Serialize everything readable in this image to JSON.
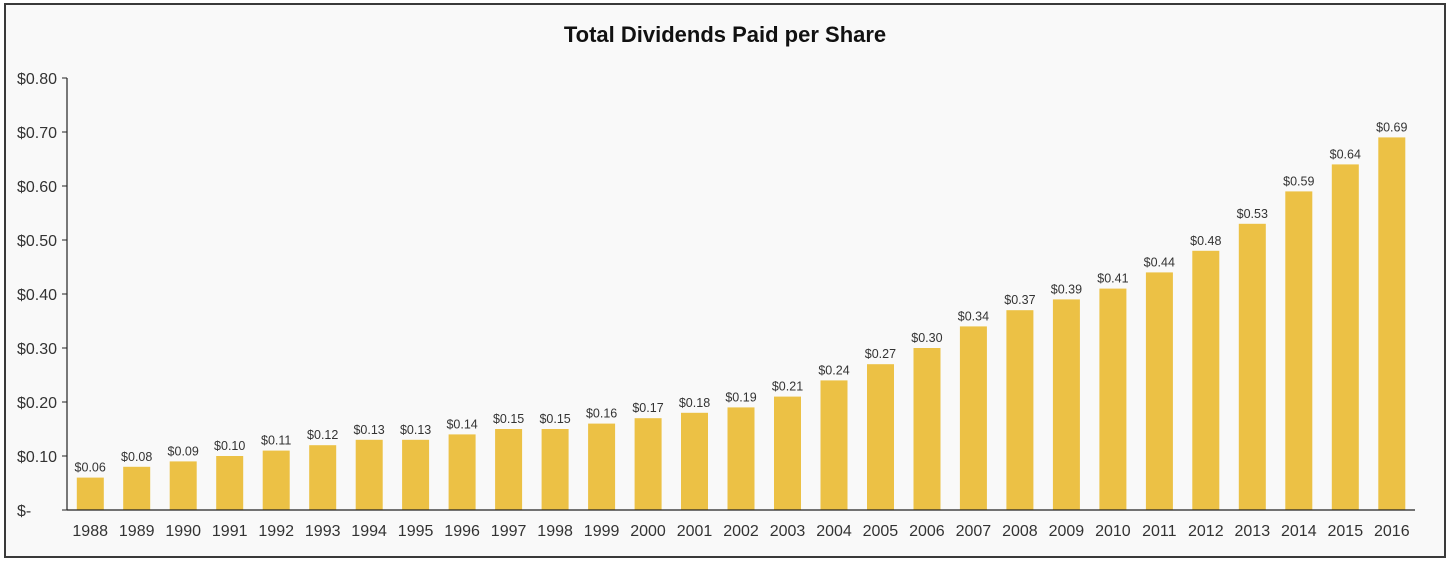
{
  "chart_data": {
    "type": "bar",
    "title": "Total Dividends Paid per Share",
    "xlabel": "",
    "ylabel": "",
    "categories": [
      "1988",
      "1989",
      "1990",
      "1991",
      "1992",
      "1993",
      "1994",
      "1995",
      "1996",
      "1997",
      "1998",
      "1999",
      "2000",
      "2001",
      "2002",
      "2003",
      "2004",
      "2005",
      "2006",
      "2007",
      "2008",
      "2009",
      "2010",
      "2011",
      "2012",
      "2013",
      "2014",
      "2015",
      "2016"
    ],
    "values": [
      0.06,
      0.08,
      0.09,
      0.1,
      0.11,
      0.12,
      0.13,
      0.13,
      0.14,
      0.15,
      0.15,
      0.16,
      0.17,
      0.18,
      0.19,
      0.21,
      0.24,
      0.27,
      0.3,
      0.34,
      0.37,
      0.39,
      0.41,
      0.44,
      0.48,
      0.53,
      0.59,
      0.64,
      0.69
    ],
    "data_labels": [
      "$0.06",
      "$0.08",
      "$0.09",
      "$0.10",
      "$0.11",
      "$0.12",
      "$0.13",
      "$0.13",
      "$0.14",
      "$0.15",
      "$0.15",
      "$0.16",
      "$0.17",
      "$0.18",
      "$0.19",
      "$0.21",
      "$0.24",
      "$0.27",
      "$0.30",
      "$0.34",
      "$0.37",
      "$0.39",
      "$0.41",
      "$0.44",
      "$0.48",
      "$0.53",
      "$0.59",
      "$0.64",
      "$0.69"
    ],
    "ylim": [
      0,
      0.8
    ],
    "y_ticks": [
      0,
      0.1,
      0.2,
      0.3,
      0.4,
      0.5,
      0.6,
      0.7,
      0.8
    ],
    "y_tick_labels": [
      "$-",
      "$0.10",
      "$0.20",
      "$0.30",
      "$0.40",
      "$0.50",
      "$0.60",
      "$0.70",
      "$0.80"
    ],
    "grid": false,
    "legend": "none",
    "bar_color": "#ECC145",
    "axis_color": "#222222",
    "label_color": "#333333"
  }
}
